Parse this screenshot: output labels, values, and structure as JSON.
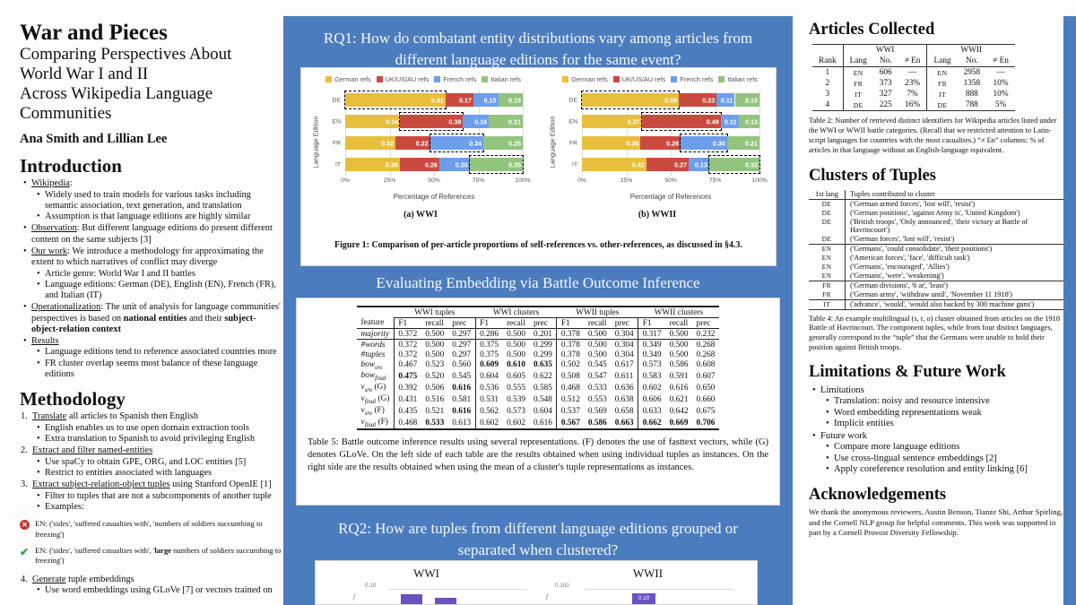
{
  "poster": {
    "title": "War and Pieces",
    "subtitle_lines": [
      "Comparing Perspectives About",
      "World War I and II",
      "Across Wikipedia Language",
      "Communities"
    ],
    "authors": "Ana Smith and Lillian Lee"
  },
  "left": {
    "intro_heading": "Introduction",
    "intro_items": [
      {
        "segs": [
          {
            "t": "Wikipedia",
            "u": 1
          },
          {
            "t": ":"
          }
        ],
        "subs": [
          "Widely used to train models for various tasks including semantic association, text generation, and translation",
          "Assumption is that language editions are highly similar"
        ]
      },
      {
        "segs": [
          {
            "t": "Observation",
            "u": 1
          },
          {
            "t": ": But different language editions do present different content on the same subjects [3]"
          }
        ]
      },
      {
        "segs": [
          {
            "t": "Our work",
            "u": 1
          },
          {
            "t": ": We introduce a methodology for approximating the extent to which narratives of conflict may diverge"
          }
        ],
        "subs": [
          "Article genre: World War I and II battles",
          "Language editions: German (DE), English (EN), French (FR), and Italian (IT)"
        ]
      },
      {
        "segs": [
          {
            "t": "Operationalization",
            "u": 1
          },
          {
            "t": ": The unit of analysis for language communities' perspectives is based on "
          },
          {
            "t": "national entities",
            "b": 1
          },
          {
            "t": " and their "
          },
          {
            "t": "subject-object-relation context",
            "b": 1
          }
        ]
      },
      {
        "segs": [
          {
            "t": "Results",
            "u": 1
          }
        ],
        "subs": [
          "Language editions tend to reference associated countries more",
          "FR cluster overlap seems most balance of these language editions"
        ]
      }
    ],
    "method_heading": "Methodology",
    "method_items": [
      {
        "num": "1.",
        "segs": [
          {
            "t": "Translate",
            "u": 1
          },
          {
            "t": " all articles to Spanish then English"
          }
        ],
        "subs": [
          "English enables us to use open domain extraction tools",
          "Extra translation to Spanish to avoid privileging English"
        ]
      },
      {
        "num": "2.",
        "segs": [
          {
            "t": "Extract and filter named-entities",
            "u": 1
          }
        ],
        "subs": [
          "Use spaCy to obtain GPE, ORG, and LOC entities [5]",
          "Restrict to entities associated with languages"
        ]
      },
      {
        "num": "3.",
        "segs": [
          {
            "t": "Extract subject-relation-object tuples",
            "u": 1
          },
          {
            "t": " using Stanford OpenIE [1]"
          }
        ],
        "subs": [
          "Filter to tuples that are not a subcomponents of another tuple",
          "Examples:"
        ]
      }
    ],
    "examples": [
      {
        "icon": "x",
        "segs": [
          {
            "t": "EN: ('sides', 'suffered casualties with', 'numbers of soldiers succumbing to freezing')"
          }
        ]
      },
      {
        "icon": "check",
        "segs": [
          {
            "t": "EN: ('sides', 'suffered casualties with', '"
          },
          {
            "t": "large",
            "b": 1
          },
          {
            "t": " numbers of soldiers succumbing to freezing')"
          }
        ]
      }
    ],
    "method_item4": {
      "num": "4.",
      "segs": [
        {
          "t": "Generate",
          "u": 1
        },
        {
          "t": " tuple embeddings"
        }
      ],
      "subs": [
        "Use word embeddings using GLoVe [7] or vectors trained on"
      ]
    }
  },
  "mid": {
    "rq1_title": "RQ1: How do combatant entity distributions vary among articles from different language editions for the same event?",
    "fig1_caption": "Figure 1: Comparison of per-article proportions of self-references vs. other-references, as discussed in §4.3.",
    "embed_title": "Evaluating Embedding via Battle Outcome Inference",
    "table5": {
      "groups": [
        "WWI tuples",
        "WWI clusters",
        "WWII tuples",
        "WWII clusters"
      ],
      "sub_cols": [
        "F1",
        "recall",
        "prec"
      ],
      "feature_header": "feature",
      "rows": [
        {
          "feature": {
            "base": "majority"
          },
          "vals": [
            0.372,
            0.5,
            0.297,
            0.286,
            0.5,
            0.201,
            0.378,
            0.5,
            0.304,
            0.317,
            0.5,
            0.232
          ],
          "bold": [],
          "rule_below": true
        },
        {
          "feature": {
            "base": "#words"
          },
          "vals": [
            0.372,
            0.5,
            0.297,
            0.375,
            0.5,
            0.299,
            0.378,
            0.5,
            0.304,
            0.349,
            0.5,
            0.268
          ],
          "bold": []
        },
        {
          "feature": {
            "base": "#tuples"
          },
          "vals": [
            0.372,
            0.5,
            0.297,
            0.375,
            0.5,
            0.299,
            0.378,
            0.5,
            0.304,
            0.349,
            0.5,
            0.268
          ],
          "bold": []
        },
        {
          "feature": {
            "base": "bow",
            "sub": "sro"
          },
          "vals": [
            0.467,
            0.523,
            0.56,
            0.609,
            0.61,
            0.635,
            0.502,
            0.545,
            0.617,
            0.573,
            0.586,
            0.608
          ],
          "bold": [
            3,
            4,
            5
          ]
        },
        {
          "feature": {
            "base": "bow",
            "sub": "final"
          },
          "vals": [
            0.475,
            0.52,
            0.545,
            0.604,
            0.605,
            0.622,
            0.508,
            0.547,
            0.611,
            0.583,
            0.591,
            0.607
          ],
          "bold": [
            0
          ]
        },
        {
          "feature": {
            "base": "v",
            "sub": "sro",
            "suffix": " (G)"
          },
          "vals": [
            0.392,
            0.506,
            0.616,
            0.536,
            0.555,
            0.585,
            0.468,
            0.533,
            0.636,
            0.602,
            0.616,
            0.65
          ],
          "bold": [
            2
          ]
        },
        {
          "feature": {
            "base": "v",
            "sub": "final",
            "suffix": " (G)"
          },
          "vals": [
            0.431,
            0.516,
            0.581,
            0.531,
            0.539,
            0.548,
            0.512,
            0.553,
            0.638,
            0.606,
            0.621,
            0.66
          ],
          "bold": []
        },
        {
          "feature": {
            "base": "v",
            "sub": "sro",
            "suffix": " (F)"
          },
          "vals": [
            0.435,
            0.521,
            0.616,
            0.562,
            0.573,
            0.604,
            0.537,
            0.569,
            0.658,
            0.633,
            0.642,
            0.675
          ],
          "bold": [
            2
          ]
        },
        {
          "feature": {
            "base": "v",
            "sub": "final",
            "suffix": " (F)"
          },
          "vals": [
            0.468,
            0.533,
            0.613,
            0.602,
            0.602,
            0.616,
            0.567,
            0.586,
            0.663,
            0.662,
            0.669,
            0.706
          ],
          "bold": [
            1,
            6,
            7,
            8,
            9,
            10,
            11
          ]
        }
      ],
      "caption": "Table 5: Battle outcome inference results using several representations. (F) denotes the use of fasttext vectors, while (G) denotes GLoVe. On the left side of each table are the results obtained when using individual tuples as instances. On the right side are the results obtained when using the mean of a cluster's tuple representations as instances."
    },
    "rq2_title": "RQ2: How are tuples from different language editions grouped or separated when clustered?",
    "rq2_charts": [
      {
        "title": "WWI",
        "ytick": "0.10",
        "axis_fragment": "f",
        "bars": [
          {
            "label": ""
          },
          {
            "label": ""
          }
        ]
      },
      {
        "title": "WWII",
        "ytick": "0.100",
        "axis_fragment": "f",
        "bars": [
          {
            "label": "0.10"
          }
        ]
      }
    ]
  },
  "chart_data": [
    {
      "type": "bar",
      "variant": "stacked-horizontal",
      "title": "(a) WWI",
      "categories": [
        "DE",
        "EN",
        "FR",
        "IT"
      ],
      "series": [
        {
          "name": "German refs",
          "color": "#e8bf3d",
          "values": [
            0.61,
            0.34,
            0.32,
            0.36
          ]
        },
        {
          "name": "UK/US/AU refs",
          "color": "#cb4a40",
          "values": [
            0.17,
            0.39,
            0.22,
            0.26
          ]
        },
        {
          "name": "French refs",
          "color": "#6d9eeb",
          "values": [
            0.15,
            0.16,
            0.34,
            0.2
          ]
        },
        {
          "name": "Italian refs",
          "color": "#93c47d",
          "values": [
            0.15,
            0.21,
            0.25,
            0.35
          ]
        }
      ],
      "highlight": [
        0,
        1,
        2,
        3
      ],
      "xlabel": "Percentage of References",
      "ylabel": "Language Edition",
      "xticks": [
        "0%",
        "25%",
        "50%",
        "75%",
        "100%"
      ]
    },
    {
      "type": "bar",
      "variant": "stacked-horizontal",
      "title": "(b) WWII",
      "categories": [
        "DE",
        "EN",
        "FR",
        "IT"
      ],
      "series": [
        {
          "name": "German refs",
          "color": "#e8bf3d",
          "values": [
            0.59,
            0.37,
            0.38,
            0.41
          ]
        },
        {
          "name": "UK/US/AU refs",
          "color": "#cb4a40",
          "values": [
            0.23,
            0.49,
            0.26,
            0.27
          ]
        },
        {
          "name": "French refs",
          "color": "#6d9eeb",
          "values": [
            0.11,
            0.11,
            0.3,
            0.13
          ]
        },
        {
          "name": "Italian refs",
          "color": "#93c47d",
          "values": [
            0.15,
            0.13,
            0.21,
            0.32
          ]
        }
      ],
      "highlight": [
        0,
        1,
        2,
        3
      ],
      "xlabel": "Percentage of References",
      "ylabel": "Language Edition",
      "xticks": [
        "0%",
        "25%",
        "50%",
        "75%",
        "100%"
      ]
    },
    {
      "type": "bar",
      "title": "WWI",
      "visible_ticks": [
        "0.10"
      ],
      "bar_color": "#6b51c2",
      "note_visible_bars": 2
    },
    {
      "type": "bar",
      "title": "WWII",
      "visible_ticks": [
        "0.100"
      ],
      "bar_color": "#6b51c2",
      "visible_bar_labels": [
        "0.10"
      ]
    }
  ],
  "right": {
    "articles": {
      "heading": "Articles Collected",
      "table2": {
        "group_headers": [
          "WWI",
          "WWII"
        ],
        "cols": [
          "Rank",
          "Lang",
          "No.",
          "≠ En",
          "Lang",
          "No.",
          "≠ En"
        ],
        "rows": [
          [
            "1",
            "EN",
            "606",
            "—",
            "EN",
            "2958",
            "—"
          ],
          [
            "2",
            "FR",
            "373",
            "23%",
            "FR",
            "1358",
            "10%"
          ],
          [
            "3",
            "IT",
            "327",
            "7%",
            "IT",
            "888",
            "10%"
          ],
          [
            "4",
            "DE",
            "225",
            "16%",
            "DE",
            "788",
            "5%"
          ]
        ],
        "caption": "Table 2: Number of retrieved distinct identifiers for Wikipedia articles listed under the WWI or WWII battle categories. (Recall that we restricted attention to Latin-script languages for countries with the most casualties.) “≠ En” columns: % of articles in that language without an English-language equivalent."
      }
    },
    "clusters": {
      "heading": "Clusters of Tuples",
      "table4": {
        "cols": [
          "1st lang",
          "Tuples contributed to cluster"
        ],
        "rows": [
          {
            "lang": "DE",
            "tuple": "('German armed forces', 'lost will', 'resist')"
          },
          {
            "lang": "DE",
            "tuple": "('German positions', 'against Army is', 'United Kingdom')"
          },
          {
            "lang": "DE",
            "tuple": "('British troops', 'Only announced', 'their victory at Battle of Havrincourt')"
          },
          {
            "lang": "DE",
            "tuple": "('German forces', 'lost will', 'resist')",
            "group_end": true
          },
          {
            "lang": "EN",
            "tuple": "('Germans', 'could consolidate', 'their positions')"
          },
          {
            "lang": "EN",
            "tuple": "('American forces', 'face', 'difficult task')"
          },
          {
            "lang": "EN",
            "tuple": "('Germans', 'encouraged', 'Allies')"
          },
          {
            "lang": "EN",
            "tuple": "('Germans', 'were', 'weakening')",
            "group_end": true
          },
          {
            "lang": "FR",
            "tuple": "('German divisions', '6 at', 'least')"
          },
          {
            "lang": "FR",
            "tuple": "('German army', 'withdraw until', 'November 11 1918')",
            "group_end": true
          },
          {
            "lang": "IT",
            "tuple": "('advance', 'would', 'would also backed by 300 machine guns')"
          }
        ],
        "caption": "Table 4: An example multilingual (s, r, o) cluster obtained from articles on the 1918 Battle of Havrincourt. The component tuples, while from four distinct languages, generally correspond to the “tuple” that the Germans were unable to hold their position against British troops."
      }
    },
    "limitations": {
      "heading": "Limitations & Future Work",
      "items": [
        {
          "label": "Limitations",
          "subs": [
            "Translation: noisy and resource intensive",
            "Word embedding representations weak",
            "Implicit entities"
          ]
        },
        {
          "label": "Future work",
          "subs": [
            "Compare more language editions",
            "Use cross-lingual sentence embeddings [2]",
            "Apply coreference resolution and entity linking [6]"
          ]
        }
      ]
    },
    "ack": {
      "heading": "Acknowledgements",
      "text": "We thank the anonymous reviewers, Austin Benson, Tianze Shi, Arthur Spirling, and the Cornell NLP group for helpful comments. This work was supported in part by a Cornell Provost Diversity Fellowship."
    }
  }
}
